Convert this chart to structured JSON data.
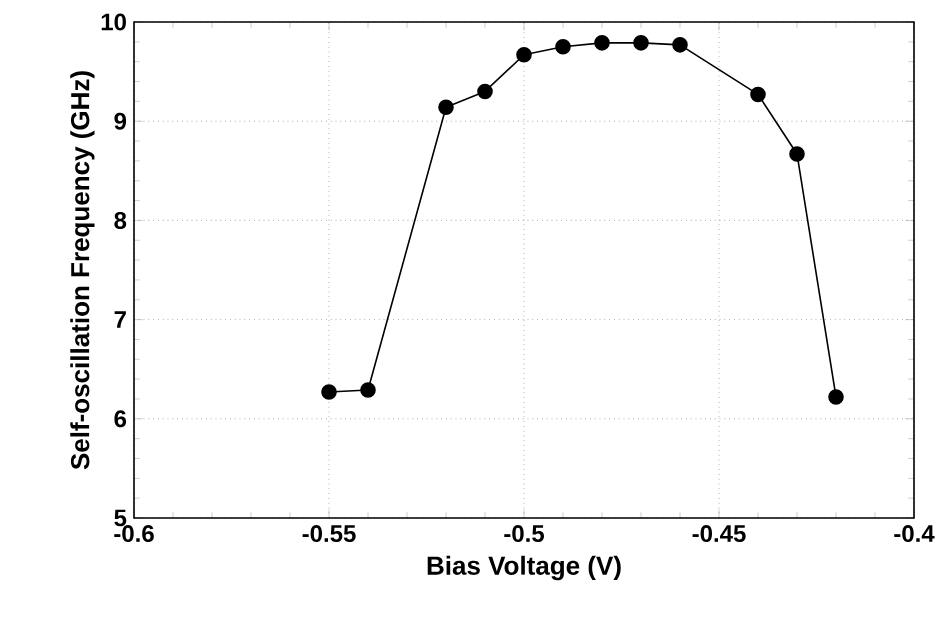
{
  "chart_data": {
    "type": "line",
    "xlabel": "Bias Voltage   (V)",
    "ylabel": "Self-oscillation Frequency   (GHz)",
    "x": [
      -0.55,
      -0.54,
      -0.52,
      -0.51,
      -0.5,
      -0.49,
      -0.48,
      -0.47,
      -0.46,
      -0.44,
      -0.43,
      -0.42
    ],
    "values": [
      6.27,
      6.29,
      9.14,
      9.3,
      9.67,
      9.75,
      9.79,
      9.79,
      9.77,
      9.27,
      8.67,
      6.22
    ],
    "color": "#000000",
    "marker": "circle",
    "line_style": "solid",
    "grid": true,
    "xlim": [
      -0.6,
      -0.4
    ],
    "ylim": [
      5,
      10
    ],
    "xticks": [
      -0.6,
      -0.55,
      -0.5,
      -0.45,
      -0.4
    ],
    "yticks": [
      5,
      6,
      7,
      8,
      9,
      10
    ]
  }
}
